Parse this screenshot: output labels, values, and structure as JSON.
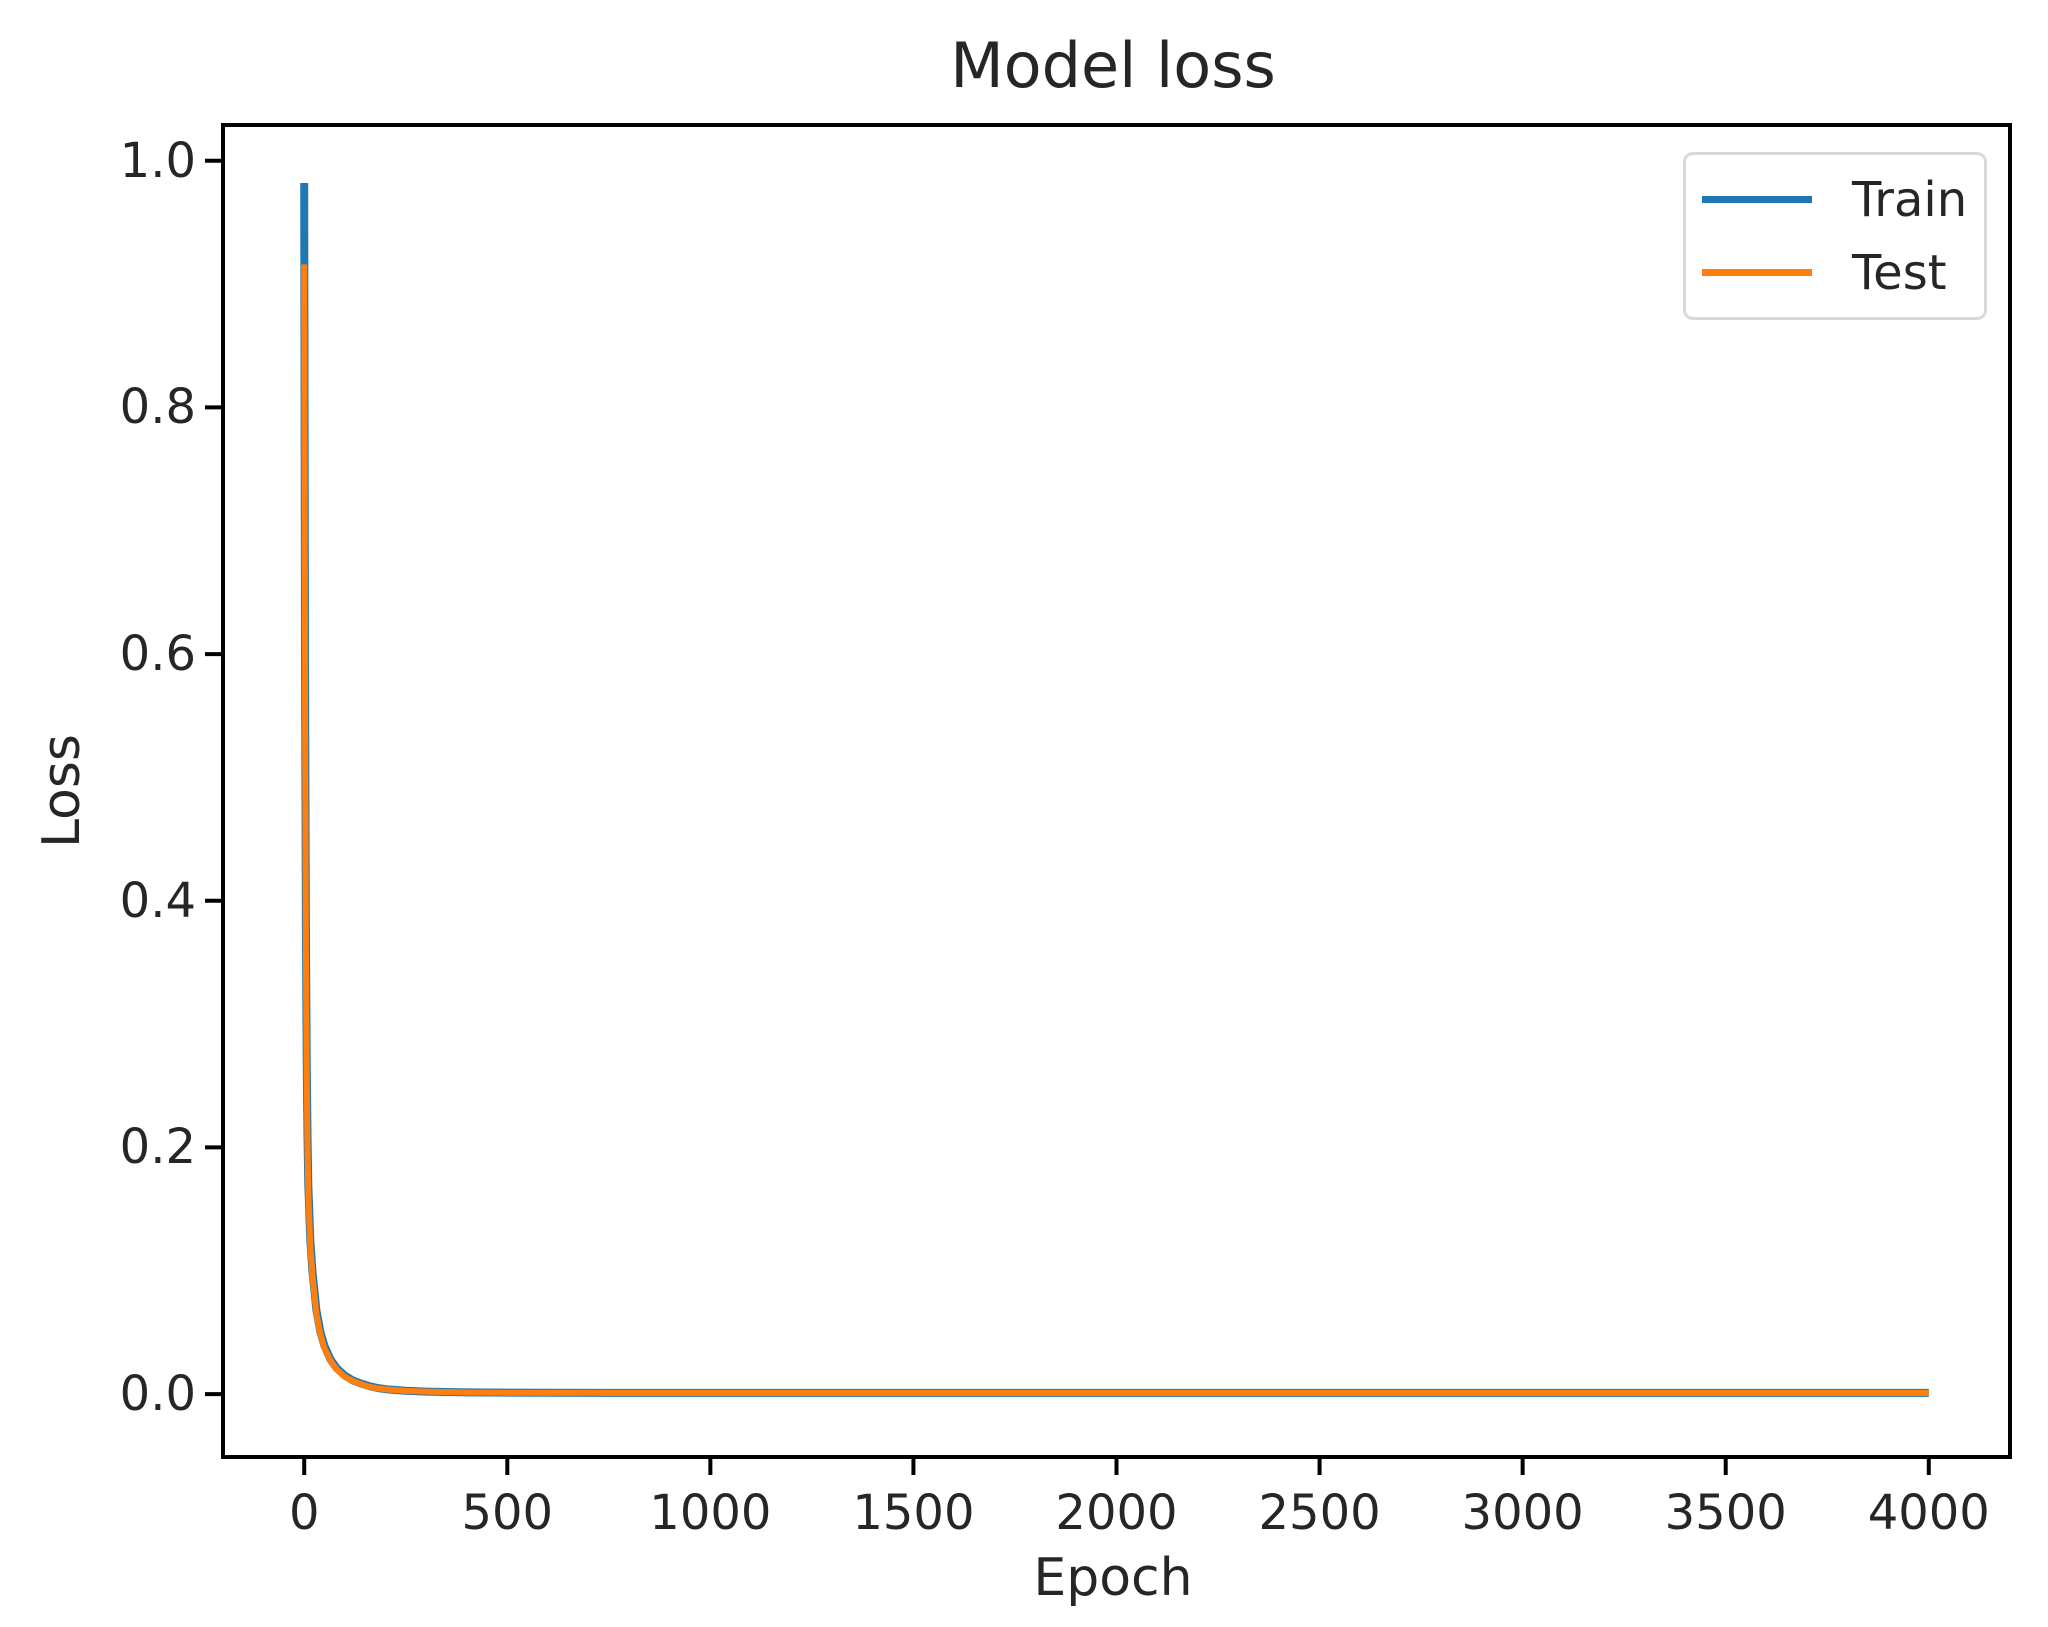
{
  "chart_data": {
    "type": "line",
    "title": "Model loss",
    "xlabel": "Epoch",
    "ylabel": "Loss",
    "xlim": [
      -200,
      4200
    ],
    "ylim": [
      -0.051,
      1.029
    ],
    "xticks": [
      0,
      500,
      1000,
      1500,
      2000,
      2500,
      3000,
      3500,
      4000
    ],
    "yticks": [
      "0.0",
      "0.2",
      "0.4",
      "0.6",
      "0.8",
      "1.0"
    ],
    "ytick_values": [
      0.0,
      0.2,
      0.4,
      0.6,
      0.8,
      1.0
    ],
    "grid": false,
    "legend": {
      "position": "upper right",
      "entries": [
        {
          "label": "Train",
          "color": "#1f77b4"
        },
        {
          "label": "Test",
          "color": "#ff7f0e"
        }
      ]
    },
    "series": [
      {
        "name": "Train",
        "color": "#1f77b4",
        "points": [
          [
            0,
            0.982
          ],
          [
            2,
            0.6
          ],
          [
            4,
            0.38
          ],
          [
            6,
            0.27
          ],
          [
            8,
            0.21
          ],
          [
            10,
            0.17
          ],
          [
            15,
            0.125
          ],
          [
            20,
            0.1
          ],
          [
            30,
            0.068
          ],
          [
            40,
            0.05
          ],
          [
            50,
            0.039
          ],
          [
            65,
            0.028
          ],
          [
            80,
            0.021
          ],
          [
            100,
            0.015
          ],
          [
            120,
            0.011
          ],
          [
            140,
            0.0085
          ],
          [
            160,
            0.0065
          ],
          [
            180,
            0.005
          ],
          [
            200,
            0.004
          ],
          [
            250,
            0.0027
          ],
          [
            300,
            0.002
          ],
          [
            400,
            0.0014
          ],
          [
            500,
            0.0012
          ],
          [
            750,
            0.001
          ],
          [
            1000,
            0.001
          ],
          [
            1500,
            0.001
          ],
          [
            2000,
            0.001
          ],
          [
            2500,
            0.001
          ],
          [
            3000,
            0.001
          ],
          [
            3500,
            0.001
          ],
          [
            4000,
            0.001
          ]
        ]
      },
      {
        "name": "Test",
        "color": "#ff7f0e",
        "points": [
          [
            0,
            0.916
          ],
          [
            2,
            0.57
          ],
          [
            4,
            0.36
          ],
          [
            6,
            0.26
          ],
          [
            8,
            0.2
          ],
          [
            10,
            0.163
          ],
          [
            15,
            0.12
          ],
          [
            20,
            0.096
          ],
          [
            30,
            0.065
          ],
          [
            40,
            0.048
          ],
          [
            50,
            0.037
          ],
          [
            65,
            0.027
          ],
          [
            80,
            0.02
          ],
          [
            100,
            0.014
          ],
          [
            120,
            0.0105
          ],
          [
            140,
            0.008
          ],
          [
            160,
            0.006
          ],
          [
            180,
            0.0047
          ],
          [
            200,
            0.0038
          ],
          [
            250,
            0.0026
          ],
          [
            300,
            0.002
          ],
          [
            400,
            0.0013
          ],
          [
            500,
            0.0011
          ],
          [
            750,
            0.001
          ],
          [
            1000,
            0.001
          ],
          [
            1500,
            0.001
          ],
          [
            2000,
            0.001
          ],
          [
            2500,
            0.001
          ],
          [
            3000,
            0.001
          ],
          [
            3500,
            0.001
          ],
          [
            4000,
            0.001
          ]
        ]
      }
    ]
  }
}
